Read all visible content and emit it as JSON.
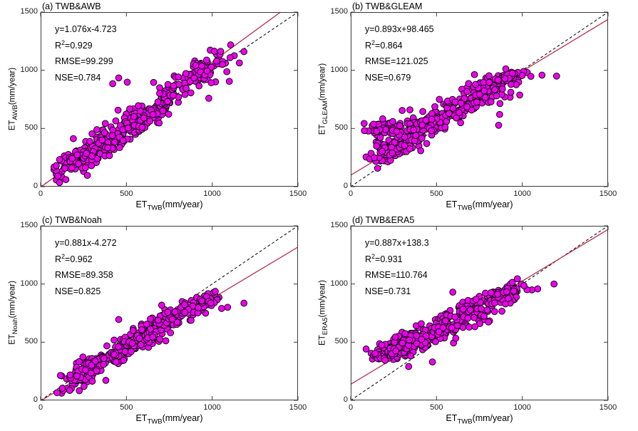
{
  "figure": {
    "background": "#ffffff",
    "marker_fill": "#ec00ec",
    "marker_edge": "#000000",
    "fit_line_color": "#b8304d",
    "identity_line_color": "#000000",
    "axis_color": "#3a3a3a",
    "text_color": "#1a1a1a"
  },
  "chart_data": [
    {
      "id": "a",
      "type": "scatter",
      "title": "(a) TWB&AWB",
      "xlabel": {
        "prefix": "ET",
        "sub": "TWB",
        "unit": "(mm/year)"
      },
      "ylabel": {
        "prefix": "ET",
        "sub": "AWB",
        "unit": "(mm/year)"
      },
      "xlim": [
        0,
        1500
      ],
      "ylim": [
        0,
        1500
      ],
      "xticks": [
        0,
        500,
        1000,
        1500
      ],
      "yticks": [
        0,
        500,
        1000,
        1500
      ],
      "stats": {
        "equation": "y=1.076x-4.723",
        "r2_base": "R",
        "r2_sup": "2",
        "r2_rest": "=0.929",
        "rmse": "RMSE=99.299",
        "nse": "NSE=0.784"
      },
      "fit": {
        "slope": 1.076,
        "intercept": -4.723
      },
      "identity_line": true,
      "points": {
        "clusters": [
          {
            "cx": 260,
            "cy": 275,
            "sx": 80,
            "sy": 60,
            "rho": 0.85,
            "n": 150
          },
          {
            "cx": 470,
            "cy": 465,
            "sx": 85,
            "sy": 65,
            "rho": 0.9,
            "n": 120
          },
          {
            "cx": 660,
            "cy": 655,
            "sx": 75,
            "sy": 60,
            "rho": 0.9,
            "n": 100
          },
          {
            "cx": 890,
            "cy": 950,
            "sx": 90,
            "sy": 65,
            "rho": 0.75,
            "n": 95
          }
        ],
        "outliers": [
          [
            1185,
            1160
          ],
          [
            1100,
            905
          ],
          [
            1060,
            1050
          ],
          [
            980,
            760
          ],
          [
            455,
            935
          ],
          [
            505,
            898
          ],
          [
            420,
            885
          ]
        ]
      }
    },
    {
      "id": "b",
      "type": "scatter",
      "title": "(b) TWB&GLEAM",
      "xlabel": {
        "prefix": "ET",
        "sub": "TWB",
        "unit": "(mm/year)"
      },
      "ylabel": {
        "prefix": "ET",
        "sub": "GLEAM",
        "unit": "(mm/year)"
      },
      "xlim": [
        0,
        1500
      ],
      "ylim": [
        0,
        1500
      ],
      "xticks": [
        0,
        500,
        1000,
        1500
      ],
      "yticks": [
        0,
        500,
        1000,
        1500
      ],
      "stats": {
        "equation": "y=0.893x+98.465",
        "r2_base": "R",
        "r2_sup": "2",
        "r2_rest": "=0.864",
        "rmse": "RMSE=121.025",
        "nse": "NSE=0.679"
      },
      "fit": {
        "slope": 0.893,
        "intercept": 98.465
      },
      "identity_line": true,
      "points": {
        "clusters": [
          {
            "cx": 255,
            "cy": 330,
            "sx": 70,
            "sy": 45,
            "rho": 0.45,
            "n": 115
          },
          {
            "cx": 205,
            "cy": 505,
            "sx": 55,
            "sy": 35,
            "rho": 0.15,
            "n": 55
          },
          {
            "cx": 480,
            "cy": 560,
            "sx": 95,
            "sy": 55,
            "rho": 0.5,
            "n": 140
          },
          {
            "cx": 750,
            "cy": 800,
            "sx": 90,
            "sy": 60,
            "rho": 0.55,
            "n": 105
          },
          {
            "cx": 920,
            "cy": 950,
            "sx": 55,
            "sy": 35,
            "rho": 0.4,
            "n": 40
          }
        ],
        "outliers": [
          [
            1050,
            948
          ],
          [
            1115,
            958
          ],
          [
            1200,
            950
          ],
          [
            985,
            788
          ],
          [
            868,
            620
          ],
          [
            862,
            528
          ],
          [
            300,
            655
          ],
          [
            345,
            660
          ]
        ]
      }
    },
    {
      "id": "c",
      "type": "scatter",
      "title": "(c) TWB&Noah",
      "xlabel": {
        "prefix": "ET",
        "sub": "TWB",
        "unit": "(mm/year)"
      },
      "ylabel": {
        "prefix": "ET",
        "sub": "Noah",
        "unit": "(mm/year)"
      },
      "xlim": [
        0,
        1500
      ],
      "ylim": [
        0,
        1500
      ],
      "xticks": [
        0,
        500,
        1000,
        1500
      ],
      "yticks": [
        0,
        500,
        1000,
        1500
      ],
      "stats": {
        "equation": "y=0.881x-4.272",
        "r2_base": "R",
        "r2_sup": "2",
        "r2_rest": "=0.962",
        "rmse": "RMSE=89.358",
        "nse": "NSE=0.825"
      },
      "fit": {
        "slope": 0.881,
        "intercept": -4.272
      },
      "identity_line": true,
      "points": {
        "clusters": [
          {
            "cx": 260,
            "cy": 250,
            "sx": 75,
            "sy": 50,
            "rho": 0.8,
            "n": 150
          },
          {
            "cx": 510,
            "cy": 465,
            "sx": 80,
            "sy": 55,
            "rho": 0.8,
            "n": 125
          },
          {
            "cx": 690,
            "cy": 635,
            "sx": 65,
            "sy": 50,
            "rho": 0.75,
            "n": 90
          },
          {
            "cx": 880,
            "cy": 795,
            "sx": 75,
            "sy": 45,
            "rho": 0.55,
            "n": 85
          }
        ],
        "outliers": [
          [
            1185,
            835
          ],
          [
            1090,
            800
          ],
          [
            1055,
            790
          ],
          [
            640,
            700
          ],
          [
            380,
            172
          ],
          [
            455,
            695
          ],
          [
            940,
            855
          ]
        ]
      }
    },
    {
      "id": "d",
      "type": "scatter",
      "title": "(d) TWB&ERA5",
      "xlabel": {
        "prefix": "ET",
        "sub": "TWB",
        "unit": "(mm/year)"
      },
      "ylabel": {
        "prefix": "ET",
        "sub": "ERA5",
        "unit": "(mm/year)"
      },
      "xlim": [
        0,
        1500
      ],
      "ylim": [
        0,
        1500
      ],
      "xticks": [
        0,
        500,
        1000,
        1500
      ],
      "yticks": [
        0,
        500,
        1000,
        1500
      ],
      "stats": {
        "equation": "y=0.887x+138.3",
        "r2_base": "R",
        "r2_sup": "2",
        "r2_rest": "=0.931",
        "rmse": "RMSE=110.764",
        "nse": "NSE=0.731"
      },
      "fit": {
        "slope": 0.887,
        "intercept": 138.3
      },
      "identity_line": true,
      "points": {
        "clusters": [
          {
            "cx": 260,
            "cy": 445,
            "sx": 70,
            "sy": 60,
            "rho": 0.45,
            "n": 150
          },
          {
            "cx": 480,
            "cy": 590,
            "sx": 85,
            "sy": 55,
            "rho": 0.55,
            "n": 125
          },
          {
            "cx": 680,
            "cy": 730,
            "sx": 75,
            "sy": 55,
            "rho": 0.55,
            "n": 100
          },
          {
            "cx": 880,
            "cy": 905,
            "sx": 70,
            "sy": 45,
            "rho": 0.45,
            "n": 80
          }
        ],
        "outliers": [
          [
            1185,
            1000
          ],
          [
            1090,
            958
          ],
          [
            595,
            930
          ],
          [
            476,
            330
          ],
          [
            1010,
            985
          ],
          [
            950,
            940
          ]
        ]
      }
    }
  ]
}
